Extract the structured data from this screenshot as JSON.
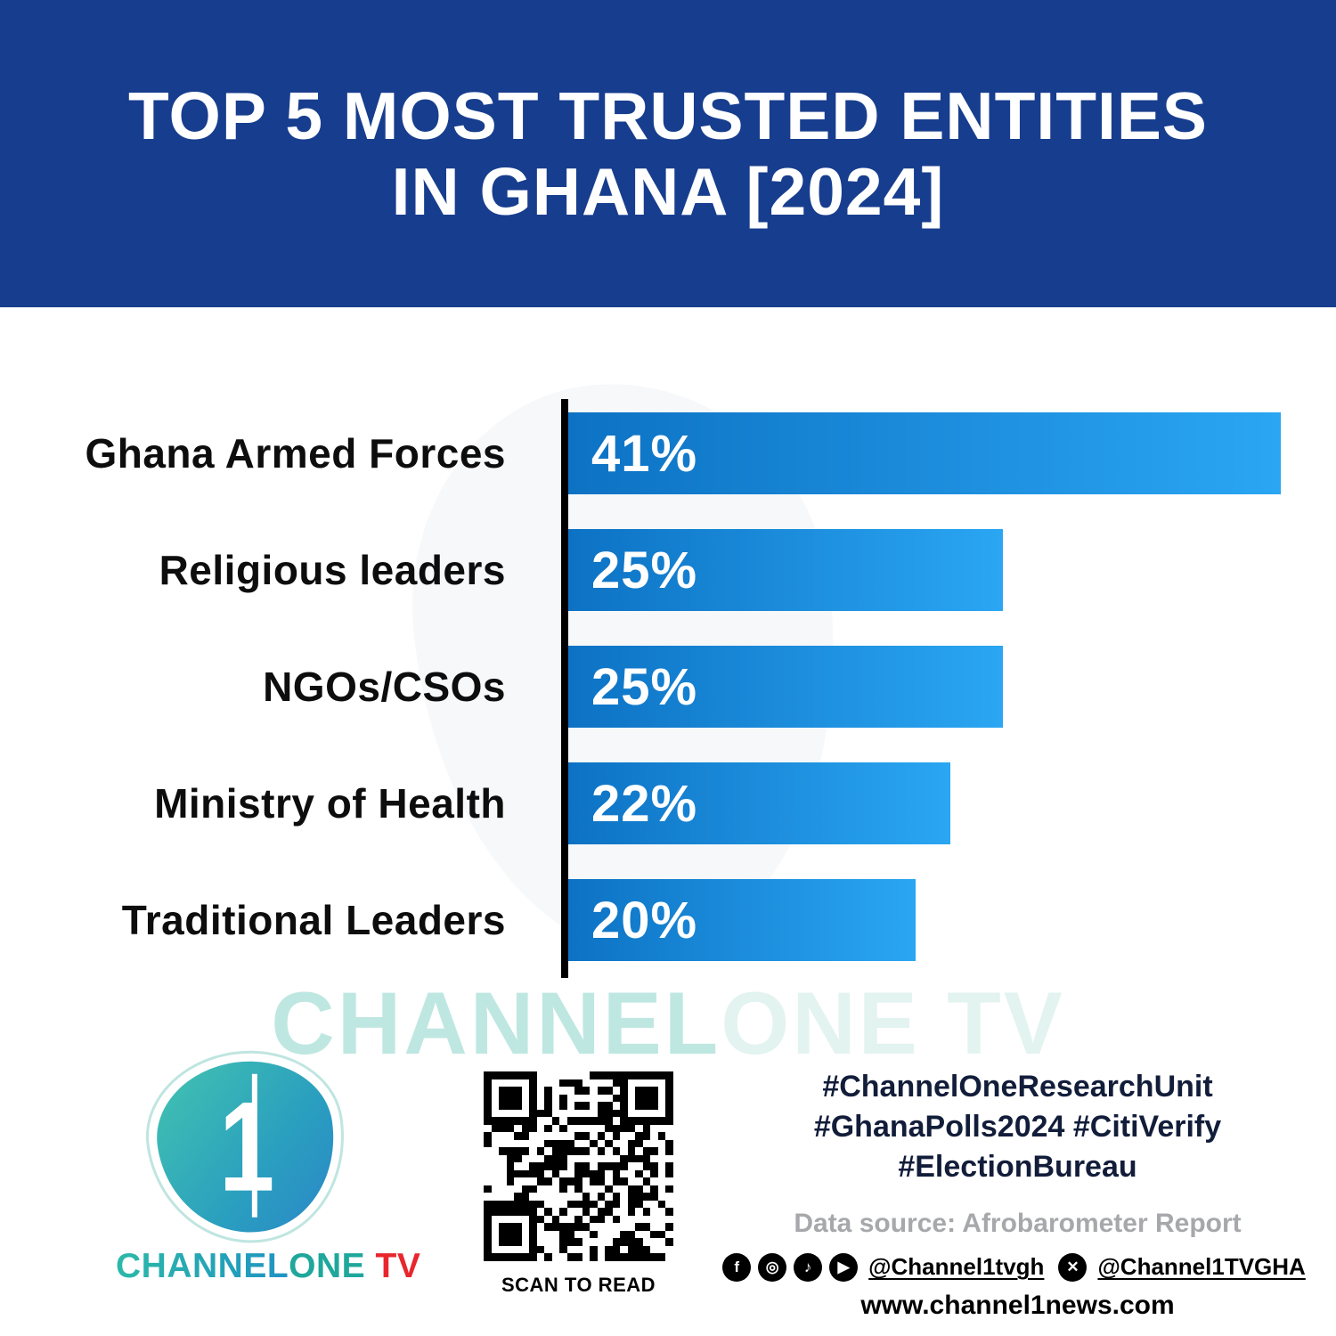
{
  "header": {
    "title_line1": "TOP 5 MOST TRUSTED ENTITIES",
    "title_line2": "IN GHANA [2024]"
  },
  "chart_data": {
    "type": "bar",
    "orientation": "horizontal",
    "title": "Top 5 Most Trusted Entities in Ghana [2024]",
    "categories": [
      "Ghana Armed Forces",
      "Religious leaders",
      "NGOs/CSOs",
      "Ministry of Health",
      "Traditional Leaders"
    ],
    "values": [
      41,
      25,
      25,
      22,
      20
    ],
    "unit": "%",
    "xlim": [
      0,
      41
    ],
    "grid": false,
    "legend": false,
    "bar_color_start": "#0d72c4",
    "bar_color_end": "#2aa6f2"
  },
  "watermark": {
    "part1": "CHANNEL",
    "part2": "ONE TV"
  },
  "footer": {
    "logo": {
      "channel": "CHANNEL",
      "one": "ONE",
      "tv": " TV",
      "mark": "1"
    },
    "qr_caption": "SCAN TO READ",
    "hashtags": [
      "#ChannelOneResearchUnit",
      "#GhanaPolls2024 #CitiVerify",
      "#ElectionBureau"
    ],
    "data_source": "Data source: Afrobarometer Report",
    "social": {
      "handle_main": "@Channel1tvgh",
      "handle_x": "@Channel1TVGHA",
      "glyphs": {
        "facebook": "f",
        "instagram": "◎",
        "tiktok": "♪",
        "youtube": "▶",
        "x": "✕"
      }
    },
    "website": "www.channel1news.com"
  },
  "colors": {
    "banner": "#173d8e",
    "accent_teal": "#1fa79b",
    "accent_red": "#e8262d"
  }
}
